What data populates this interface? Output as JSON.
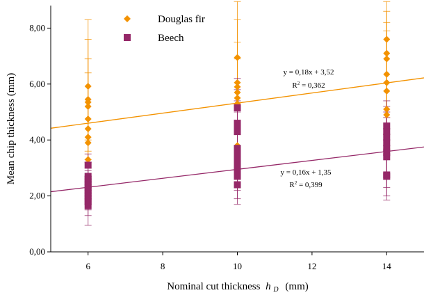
{
  "chart_data": {
    "type": "scatter",
    "xlabel": "Nominal cut thickness",
    "xlabel_symbol": "h",
    "xlabel_subscript": "D",
    "xlabel_unit": "(mm)",
    "ylabel": "Mean chip thickness (mm)",
    "xlim": [
      5,
      15
    ],
    "ylim": [
      0,
      9
    ],
    "x_ticks": [
      6,
      8,
      10,
      12,
      14
    ],
    "x_tick_labels": [
      "6",
      "8",
      "10",
      "12",
      "14"
    ],
    "y_ticks": [
      0,
      2,
      4,
      6,
      8
    ],
    "y_tick_labels": [
      "0,00",
      "2,00",
      "4,00",
      "6,00",
      "8,00"
    ],
    "grid": false,
    "legend_position": "top-left",
    "series": [
      {
        "name": "Douglas fir",
        "color": "#f39200",
        "marker": "diamond",
        "points": [
          {
            "x": 6,
            "y": 5.92
          },
          {
            "x": 6,
            "y": 5.45
          },
          {
            "x": 6,
            "y": 5.35
          },
          {
            "x": 6,
            "y": 5.2
          },
          {
            "x": 6,
            "y": 4.75
          },
          {
            "x": 6,
            "y": 4.4
          },
          {
            "x": 6,
            "y": 4.1
          },
          {
            "x": 6,
            "y": 3.9
          },
          {
            "x": 6,
            "y": 3.3
          },
          {
            "x": 10,
            "y": 6.95
          },
          {
            "x": 10,
            "y": 6.05
          },
          {
            "x": 10,
            "y": 5.9
          },
          {
            "x": 10,
            "y": 5.7
          },
          {
            "x": 10,
            "y": 5.5
          },
          {
            "x": 10,
            "y": 5.3
          },
          {
            "x": 10,
            "y": 4.6
          },
          {
            "x": 10,
            "y": 3.8
          },
          {
            "x": 10,
            "y": 3.6
          },
          {
            "x": 14,
            "y": 7.6
          },
          {
            "x": 14,
            "y": 7.1
          },
          {
            "x": 14,
            "y": 6.9
          },
          {
            "x": 14,
            "y": 6.35
          },
          {
            "x": 14,
            "y": 6.05
          },
          {
            "x": 14,
            "y": 5.75
          },
          {
            "x": 14,
            "y": 5.1
          },
          {
            "x": 14,
            "y": 4.9
          }
        ],
        "error_bars": [
          {
            "x": 6,
            "low": 3.0,
            "high": 8.3
          },
          {
            "x": 6,
            "low": 3.3,
            "high": 7.6
          },
          {
            "x": 6,
            "low": 3.6,
            "high": 6.9
          },
          {
            "x": 6,
            "low": 4.0,
            "high": 6.4
          },
          {
            "x": 10,
            "low": 3.2,
            "high": 8.95
          },
          {
            "x": 10,
            "low": 3.6,
            "high": 8.3
          },
          {
            "x": 10,
            "low": 4.2,
            "high": 7.5
          },
          {
            "x": 10,
            "low": 4.6,
            "high": 6.9
          },
          {
            "x": 14,
            "low": 3.7,
            "high": 8.95
          },
          {
            "x": 14,
            "low": 4.2,
            "high": 8.6
          },
          {
            "x": 14,
            "low": 4.8,
            "high": 8.2
          },
          {
            "x": 14,
            "low": 5.1,
            "high": 7.9
          }
        ],
        "trendline": {
          "slope": 0.18,
          "intercept": 3.52,
          "equation": "y = 0,18x + 3,52",
          "r2_label": "R",
          "r2_value": " = 0,362"
        }
      },
      {
        "name": "Beech",
        "color": "#952868",
        "marker": "square",
        "points": [
          {
            "x": 6,
            "y": 3.1
          },
          {
            "x": 6,
            "y": 2.7
          },
          {
            "x": 6,
            "y": 2.6
          },
          {
            "x": 6,
            "y": 2.5
          },
          {
            "x": 6,
            "y": 2.4
          },
          {
            "x": 6,
            "y": 2.3
          },
          {
            "x": 6,
            "y": 2.2
          },
          {
            "x": 6,
            "y": 2.1
          },
          {
            "x": 6,
            "y": 2.0
          },
          {
            "x": 6,
            "y": 1.9
          },
          {
            "x": 6,
            "y": 1.8
          },
          {
            "x": 6,
            "y": 1.65
          },
          {
            "x": 10,
            "y": 5.15
          },
          {
            "x": 10,
            "y": 4.6
          },
          {
            "x": 10,
            "y": 4.4
          },
          {
            "x": 10,
            "y": 4.3
          },
          {
            "x": 10,
            "y": 3.7
          },
          {
            "x": 10,
            "y": 3.5
          },
          {
            "x": 10,
            "y": 3.3
          },
          {
            "x": 10,
            "y": 3.1
          },
          {
            "x": 10,
            "y": 2.9
          },
          {
            "x": 10,
            "y": 2.7
          },
          {
            "x": 10,
            "y": 2.4
          },
          {
            "x": 14,
            "y": 4.5
          },
          {
            "x": 14,
            "y": 4.3
          },
          {
            "x": 14,
            "y": 4.1
          },
          {
            "x": 14,
            "y": 3.9
          },
          {
            "x": 14,
            "y": 3.7
          },
          {
            "x": 14,
            "y": 3.55
          },
          {
            "x": 14,
            "y": 3.4
          },
          {
            "x": 14,
            "y": 2.75
          },
          {
            "x": 14,
            "y": 2.7
          }
        ],
        "error_bars": [
          {
            "x": 6,
            "low": 0.95,
            "high": 3.5
          },
          {
            "x": 6,
            "low": 1.3,
            "high": 3.2
          },
          {
            "x": 6,
            "low": 1.5,
            "high": 2.9
          },
          {
            "x": 6,
            "low": 1.7,
            "high": 2.7
          },
          {
            "x": 10,
            "low": 1.7,
            "high": 6.2
          },
          {
            "x": 10,
            "low": 1.9,
            "high": 5.8
          },
          {
            "x": 10,
            "low": 2.2,
            "high": 5.4
          },
          {
            "x": 10,
            "low": 2.5,
            "high": 5.0
          },
          {
            "x": 14,
            "low": 1.85,
            "high": 5.4
          },
          {
            "x": 14,
            "low": 2.0,
            "high": 5.2
          },
          {
            "x": 14,
            "low": 2.3,
            "high": 5.0
          },
          {
            "x": 14,
            "low": 2.6,
            "high": 4.8
          }
        ],
        "trendline": {
          "slope": 0.16,
          "intercept": 1.35,
          "equation": "y = 0,16x + 1,35",
          "r2_label": "R",
          "r2_value": " = 0,399"
        }
      }
    ]
  }
}
